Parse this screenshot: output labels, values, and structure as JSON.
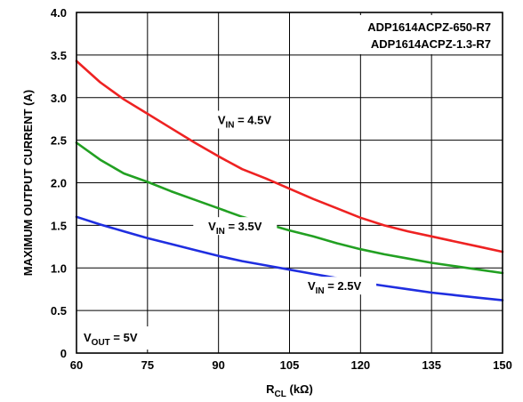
{
  "chart_data": {
    "type": "line",
    "title": "",
    "xlabel": "R",
    "xlabel_sub": "CL",
    "xlabel_unit": " (kΩ)",
    "ylabel": "MAXIMUM OUTPUT CURRENT (A)",
    "xlim": [
      60,
      150
    ],
    "ylim": [
      0,
      4.0
    ],
    "x_ticks": [
      "60",
      "75",
      "90",
      "105",
      "120",
      "135",
      "150"
    ],
    "y_ticks": [
      "0",
      "0.5",
      "1.0",
      "1.5",
      "2.0",
      "2.5",
      "3.0",
      "3.5",
      "4.0"
    ],
    "grid": true,
    "part_numbers": [
      "ADP1614ACPZ-650-R7",
      "ADP1614ACPZ-1.3-R7"
    ],
    "condition": {
      "prefix": "V",
      "sub": "OUT",
      "suffix": " = 5V"
    },
    "series": [
      {
        "label": {
          "prefix": "V",
          "sub": "IN",
          "suffix": " = 4.5V"
        },
        "color": "#ee2222",
        "x": [
          60,
          65,
          70,
          75,
          80,
          85,
          90,
          95,
          100,
          105,
          110,
          115,
          120,
          125,
          130,
          135,
          140,
          145,
          150
        ],
        "y": [
          3.43,
          3.18,
          2.98,
          2.81,
          2.64,
          2.47,
          2.31,
          2.16,
          2.05,
          1.93,
          1.81,
          1.7,
          1.59,
          1.5,
          1.43,
          1.37,
          1.31,
          1.25,
          1.19
        ]
      },
      {
        "label": {
          "prefix": "V",
          "sub": "IN",
          "suffix": " = 3.5V"
        },
        "color": "#22a022",
        "x": [
          60,
          65,
          70,
          75,
          80,
          85,
          90,
          95,
          100,
          105,
          110,
          115,
          120,
          125,
          130,
          135,
          140,
          145,
          150
        ],
        "y": [
          2.47,
          2.27,
          2.11,
          2.01,
          1.9,
          1.8,
          1.7,
          1.6,
          1.52,
          1.44,
          1.37,
          1.29,
          1.22,
          1.16,
          1.11,
          1.06,
          1.02,
          0.98,
          0.94
        ]
      },
      {
        "label": {
          "prefix": "V",
          "sub": "IN",
          "suffix": " = 2.5V"
        },
        "color": "#1f2ee0",
        "x": [
          60,
          65,
          70,
          75,
          80,
          85,
          90,
          95,
          100,
          105,
          110,
          115,
          120,
          125,
          130,
          135,
          140,
          145,
          150
        ],
        "y": [
          1.6,
          1.51,
          1.43,
          1.35,
          1.28,
          1.21,
          1.14,
          1.08,
          1.03,
          0.98,
          0.93,
          0.88,
          0.83,
          0.79,
          0.75,
          0.71,
          0.68,
          0.65,
          0.62
        ]
      }
    ]
  }
}
